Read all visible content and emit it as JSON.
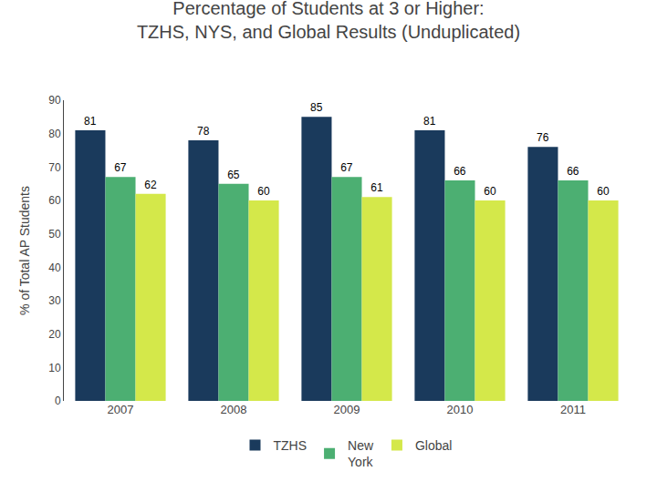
{
  "chart_data": {
    "type": "bar",
    "title": "Percentage of Students at 3 or Higher:",
    "subtitle": "TZHS, NYS, and Global Results (Unduplicated)",
    "ylabel": "% of Total AP Students",
    "categories": [
      "2007",
      "2008",
      "2009",
      "2010",
      "2011"
    ],
    "series": [
      {
        "name": "TZHS",
        "color": "#1a3a5c",
        "values": [
          81,
          78,
          85,
          81,
          76
        ]
      },
      {
        "name": "New\nYork",
        "color": "#4caf72",
        "values": [
          67,
          65,
          67,
          66,
          66
        ]
      },
      {
        "name": "Global",
        "color": "#d4e84a",
        "values": [
          62,
          60,
          61,
          60,
          60
        ]
      }
    ],
    "ylim": [
      0,
      90
    ],
    "yticks": [
      0,
      10,
      20,
      30,
      40,
      50,
      60,
      70,
      80,
      90
    ],
    "grid": false,
    "legend": "bottom",
    "data_labels": true
  }
}
